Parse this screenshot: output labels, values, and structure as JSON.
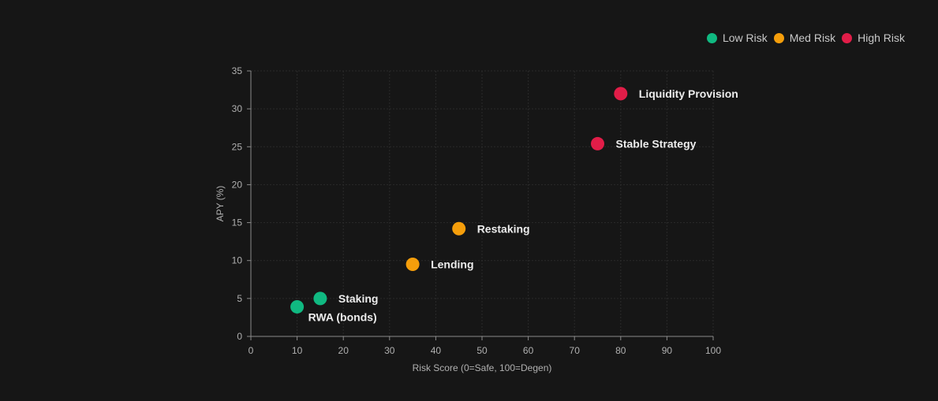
{
  "legend": [
    {
      "label": "Low Risk",
      "color": "#10b981"
    },
    {
      "label": "Med Risk",
      "color": "#f59e0b"
    },
    {
      "label": "High Risk",
      "color": "#e11d48"
    }
  ],
  "chart_data": {
    "type": "scatter",
    "title": "",
    "xlabel": "Risk Score (0=Safe, 100=Degen)",
    "ylabel": "APY (%)",
    "xlim": [
      0,
      100
    ],
    "ylim": [
      0,
      35
    ],
    "xticks": [
      0,
      10,
      20,
      30,
      40,
      50,
      60,
      70,
      80,
      90,
      100
    ],
    "yticks": [
      0,
      5,
      10,
      15,
      20,
      25,
      30,
      35
    ],
    "grid": true,
    "legend_position": "top-right",
    "series": [
      {
        "name": "Low Risk",
        "color": "#10b981",
        "points": [
          {
            "label": "Staking",
            "x": 15,
            "y": 5
          },
          {
            "label": "RWA (bonds)",
            "x": 10,
            "y": 3.9
          }
        ]
      },
      {
        "name": "Med Risk",
        "color": "#f59e0b",
        "points": [
          {
            "label": "Lending",
            "x": 35,
            "y": 9.5
          },
          {
            "label": "Restaking",
            "x": 45,
            "y": 14.2
          }
        ]
      },
      {
        "name": "High Risk",
        "color": "#e11d48",
        "points": [
          {
            "label": "Stable Strategy",
            "x": 75,
            "y": 25.4
          },
          {
            "label": "Liquidity Provision",
            "x": 80,
            "y": 32
          }
        ]
      }
    ]
  }
}
